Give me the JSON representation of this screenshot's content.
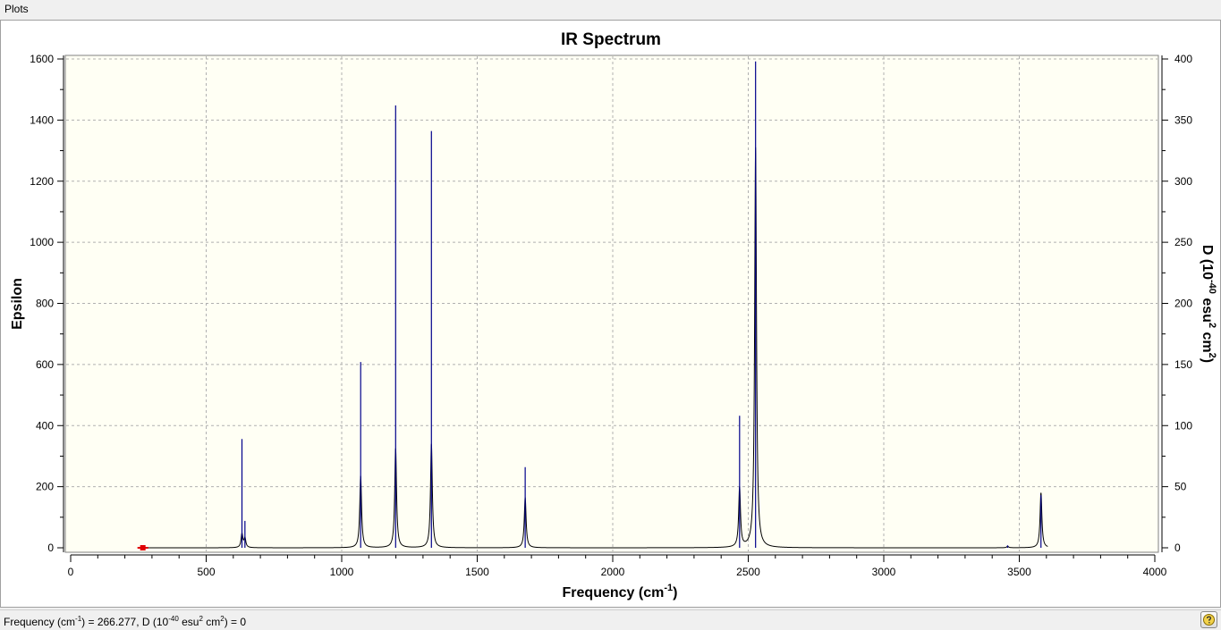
{
  "menu": {
    "plots_label": "Plots"
  },
  "chart_data": {
    "type": "line",
    "title": "IR Spectrum",
    "xlabel": "Frequency (cm⁻¹)",
    "xlabel_base": "Frequency (cm",
    "xlabel_sup": "-1",
    "xlabel_end": ")",
    "ylabel": "Epsilon",
    "y2label": "D (10⁻⁴⁰ esu² cm²)",
    "y2label_parts": [
      "D (10",
      "-40",
      " esu",
      "2",
      " cm",
      "2",
      ")"
    ],
    "xlim": [
      0,
      4000
    ],
    "ylim": [
      0,
      1600
    ],
    "y2lim": [
      0,
      400
    ],
    "x_ticks": [
      "0",
      "500",
      "1000",
      "1500",
      "2000",
      "2500",
      "3000",
      "3500",
      "4000"
    ],
    "y_ticks": [
      "0",
      "200",
      "400",
      "600",
      "800",
      "1000",
      "1200",
      "1400",
      "1600"
    ],
    "y2_ticks": [
      "0",
      "50",
      "100",
      "150",
      "200",
      "250",
      "300",
      "350",
      "400"
    ],
    "grid": true,
    "colors": {
      "plot_background": "#fffff4",
      "stick": "#00008b",
      "spectrum": "#000000",
      "grid": "#b0b0b0",
      "marker": "#e00000"
    },
    "series": [
      {
        "name": "Epsilon",
        "kind": "spectrum",
        "peaks": [
          {
            "x": 632,
            "y": 45
          },
          {
            "x": 643,
            "y": 30
          },
          {
            "x": 1070,
            "y": 235
          },
          {
            "x": 1199,
            "y": 325
          },
          {
            "x": 1331,
            "y": 340
          },
          {
            "x": 1677,
            "y": 165
          },
          {
            "x": 2468,
            "y": 195
          },
          {
            "x": 2527,
            "y": 1310
          },
          {
            "x": 3457,
            "y": 5
          },
          {
            "x": 3580,
            "y": 180
          }
        ]
      },
      {
        "name": "D",
        "kind": "stick",
        "axis": "right",
        "points": [
          {
            "x": 632,
            "y": 89
          },
          {
            "x": 643,
            "y": 22
          },
          {
            "x": 1070,
            "y": 152
          },
          {
            "x": 1199,
            "y": 362
          },
          {
            "x": 1331,
            "y": 341
          },
          {
            "x": 1677,
            "y": 66
          },
          {
            "x": 2468,
            "y": 108
          },
          {
            "x": 2527,
            "y": 398
          },
          {
            "x": 3457,
            "y": 2
          },
          {
            "x": 3580,
            "y": 43
          }
        ]
      }
    ],
    "cursor_marker": {
      "x": 266.277,
      "y": 0
    }
  },
  "status": {
    "freq_label": "Frequency (cm",
    "freq_sup": "-1",
    "freq_after": ") = 266.277, D (10",
    "d_sup": "-40",
    "d_after": " esu",
    "esu_sup": "2",
    "cm_text": " cm",
    "cm_sup": "2",
    "value_text": ") = 0"
  },
  "help": {
    "icon": "help-icon"
  }
}
